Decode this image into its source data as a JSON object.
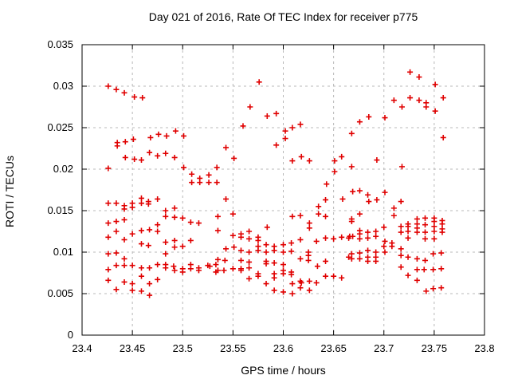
{
  "chart_data": {
    "type": "scatter",
    "title": "Day 021 of 2016, Rate Of TEC Index for receiver p775",
    "xlabel": "GPS time / hours",
    "ylabel": "ROTI / TECUs",
    "xlim": [
      23.4,
      23.8
    ],
    "ylim": [
      0,
      0.035
    ],
    "x_ticks": [
      23.4,
      23.45,
      23.5,
      23.55,
      23.6,
      23.65,
      23.7,
      23.75,
      23.8
    ],
    "x_tick_labels": [
      "23.4",
      "23.45",
      "23.5",
      "23.55",
      "23.6",
      "23.65",
      "23.7",
      "23.75",
      "23.8"
    ],
    "y_ticks": [
      0,
      0.005,
      0.01,
      0.015,
      0.02,
      0.025,
      0.03,
      0.035
    ],
    "y_tick_labels": [
      "0",
      "0.005",
      "0.01",
      "0.015",
      "0.02",
      "0.025",
      "0.03",
      "0.035"
    ],
    "grid": true,
    "legend_position": "none",
    "marker": "plus",
    "marker_color": "#e00000",
    "grid_color": "#b8b8b8",
    "border_color": "#000000",
    "points": [
      [
        23.426,
        0.03
      ],
      [
        23.434,
        0.0296
      ],
      [
        23.442,
        0.0292
      ],
      [
        23.452,
        0.0287
      ],
      [
        23.46,
        0.0286
      ],
      [
        23.435,
        0.0232
      ],
      [
        23.435,
        0.0228
      ],
      [
        23.443,
        0.0233
      ],
      [
        23.451,
        0.0236
      ],
      [
        23.443,
        0.0214
      ],
      [
        23.452,
        0.0212
      ],
      [
        23.459,
        0.0211
      ],
      [
        23.468,
        0.0238
      ],
      [
        23.476,
        0.0242
      ],
      [
        23.484,
        0.024
      ],
      [
        23.493,
        0.0246
      ],
      [
        23.501,
        0.024
      ],
      [
        23.467,
        0.022
      ],
      [
        23.475,
        0.0216
      ],
      [
        23.483,
        0.0219
      ],
      [
        23.492,
        0.0214
      ],
      [
        23.426,
        0.0201
      ],
      [
        23.501,
        0.0202
      ],
      [
        23.534,
        0.0202
      ],
      [
        23.509,
        0.0194
      ],
      [
        23.517,
        0.0189
      ],
      [
        23.526,
        0.0193
      ],
      [
        23.509,
        0.0184
      ],
      [
        23.517,
        0.0184
      ],
      [
        23.526,
        0.0184
      ],
      [
        23.534,
        0.0184
      ],
      [
        23.576,
        0.0305
      ],
      [
        23.567,
        0.0275
      ],
      [
        23.584,
        0.0264
      ],
      [
        23.593,
        0.0267
      ],
      [
        23.56,
        0.0252
      ],
      [
        23.602,
        0.0246
      ],
      [
        23.609,
        0.025
      ],
      [
        23.617,
        0.0254
      ],
      [
        23.602,
        0.0237
      ],
      [
        23.593,
        0.0229
      ],
      [
        23.543,
        0.0226
      ],
      [
        23.551,
        0.0213
      ],
      [
        23.609,
        0.021
      ],
      [
        23.618,
        0.0215
      ],
      [
        23.626,
        0.021
      ],
      [
        23.651,
        0.021
      ],
      [
        23.658,
        0.0215
      ],
      [
        23.668,
        0.0243
      ],
      [
        23.668,
        0.0203
      ],
      [
        23.651,
        0.0197
      ],
      [
        23.643,
        0.0182
      ],
      [
        23.726,
        0.0317
      ],
      [
        23.735,
        0.0311
      ],
      [
        23.751,
        0.0302
      ],
      [
        23.71,
        0.0283
      ],
      [
        23.726,
        0.0286
      ],
      [
        23.735,
        0.0283
      ],
      [
        23.742,
        0.028
      ],
      [
        23.742,
        0.0275
      ],
      [
        23.718,
        0.0275
      ],
      [
        23.751,
        0.027
      ],
      [
        23.759,
        0.0286
      ],
      [
        23.701,
        0.0262
      ],
      [
        23.685,
        0.0263
      ],
      [
        23.676,
        0.0257
      ],
      [
        23.759,
        0.0238
      ],
      [
        23.693,
        0.0211
      ],
      [
        23.718,
        0.0203
      ],
      [
        23.459,
        0.0165
      ],
      [
        23.475,
        0.0164
      ],
      [
        23.426,
        0.0159
      ],
      [
        23.434,
        0.0159
      ],
      [
        23.442,
        0.0156
      ],
      [
        23.45,
        0.0159
      ],
      [
        23.459,
        0.0159
      ],
      [
        23.466,
        0.0161
      ],
      [
        23.466,
        0.0158
      ],
      [
        23.442,
        0.0152
      ],
      [
        23.45,
        0.0154
      ],
      [
        23.483,
        0.015
      ],
      [
        23.492,
        0.0153
      ],
      [
        23.483,
        0.0143
      ],
      [
        23.492,
        0.0142
      ],
      [
        23.5,
        0.0141
      ],
      [
        23.508,
        0.0136
      ],
      [
        23.516,
        0.0135
      ],
      [
        23.535,
        0.0143
      ],
      [
        23.426,
        0.0135
      ],
      [
        23.434,
        0.0137
      ],
      [
        23.442,
        0.0139
      ],
      [
        23.434,
        0.0125
      ],
      [
        23.426,
        0.0118
      ],
      [
        23.442,
        0.0115
      ],
      [
        23.45,
        0.0122
      ],
      [
        23.459,
        0.0126
      ],
      [
        23.467,
        0.0127
      ],
      [
        23.475,
        0.0133
      ],
      [
        23.475,
        0.0125
      ],
      [
        23.459,
        0.011
      ],
      [
        23.466,
        0.0108
      ],
      [
        23.483,
        0.0112
      ],
      [
        23.492,
        0.0114
      ],
      [
        23.492,
        0.0106
      ],
      [
        23.5,
        0.0107
      ],
      [
        23.508,
        0.0114
      ],
      [
        23.483,
        0.0098
      ],
      [
        23.426,
        0.0098
      ],
      [
        23.434,
        0.0099
      ],
      [
        23.442,
        0.0092
      ],
      [
        23.434,
        0.0084
      ],
      [
        23.442,
        0.0084
      ],
      [
        23.45,
        0.0084
      ],
      [
        23.426,
        0.0079
      ],
      [
        23.459,
        0.0081
      ],
      [
        23.467,
        0.0081
      ],
      [
        23.475,
        0.0085
      ],
      [
        23.483,
        0.0085
      ],
      [
        23.483,
        0.0081
      ],
      [
        23.491,
        0.0083
      ],
      [
        23.492,
        0.0078
      ],
      [
        23.5,
        0.008
      ],
      [
        23.5,
        0.0076
      ],
      [
        23.508,
        0.0085
      ],
      [
        23.508,
        0.008
      ],
      [
        23.516,
        0.0081
      ],
      [
        23.516,
        0.0078
      ],
      [
        23.525,
        0.0084
      ],
      [
        23.527,
        0.0083
      ],
      [
        23.533,
        0.0085
      ],
      [
        23.533,
        0.0076
      ],
      [
        23.426,
        0.0066
      ],
      [
        23.442,
        0.0064
      ],
      [
        23.45,
        0.0062
      ],
      [
        23.459,
        0.0071
      ],
      [
        23.467,
        0.0062
      ],
      [
        23.475,
        0.0067
      ],
      [
        23.434,
        0.0055
      ],
      [
        23.45,
        0.0054
      ],
      [
        23.459,
        0.0053
      ],
      [
        23.467,
        0.0048
      ],
      [
        23.543,
        0.0164
      ],
      [
        23.642,
        0.0163
      ],
      [
        23.659,
        0.0164
      ],
      [
        23.635,
        0.0155
      ],
      [
        23.635,
        0.0146
      ],
      [
        23.55,
        0.0146
      ],
      [
        23.609,
        0.0143
      ],
      [
        23.617,
        0.0144
      ],
      [
        23.642,
        0.0143
      ],
      [
        23.668,
        0.0137
      ],
      [
        23.626,
        0.0135
      ],
      [
        23.584,
        0.013
      ],
      [
        23.626,
        0.0129
      ],
      [
        23.535,
        0.0126
      ],
      [
        23.55,
        0.012
      ],
      [
        23.558,
        0.0122
      ],
      [
        23.558,
        0.0118
      ],
      [
        23.566,
        0.0125
      ],
      [
        23.566,
        0.0116
      ],
      [
        23.575,
        0.0118
      ],
      [
        23.575,
        0.0114
      ],
      [
        23.617,
        0.0115
      ],
      [
        23.633,
        0.0113
      ],
      [
        23.642,
        0.0117
      ],
      [
        23.65,
        0.0116
      ],
      [
        23.658,
        0.0118
      ],
      [
        23.665,
        0.0117
      ],
      [
        23.669,
        0.0119
      ],
      [
        23.666,
        0.0119
      ],
      [
        23.575,
        0.0107
      ],
      [
        23.583,
        0.0109
      ],
      [
        23.591,
        0.0107
      ],
      [
        23.6,
        0.0109
      ],
      [
        23.608,
        0.0111
      ],
      [
        23.551,
        0.0106
      ],
      [
        23.543,
        0.0104
      ],
      [
        23.558,
        0.0102
      ],
      [
        23.566,
        0.01
      ],
      [
        23.575,
        0.0102
      ],
      [
        23.583,
        0.01
      ],
      [
        23.591,
        0.0102
      ],
      [
        23.6,
        0.01
      ],
      [
        23.608,
        0.0101
      ],
      [
        23.625,
        0.01
      ],
      [
        23.625,
        0.0096
      ],
      [
        23.617,
        0.0092
      ],
      [
        23.625,
        0.009
      ],
      [
        23.535,
        0.0091
      ],
      [
        23.542,
        0.009
      ],
      [
        23.558,
        0.009
      ],
      [
        23.566,
        0.0088
      ],
      [
        23.583,
        0.0089
      ],
      [
        23.583,
        0.0086
      ],
      [
        23.591,
        0.0087
      ],
      [
        23.6,
        0.0085
      ],
      [
        23.634,
        0.0083
      ],
      [
        23.642,
        0.0089
      ],
      [
        23.535,
        0.0078
      ],
      [
        23.541,
        0.0078
      ],
      [
        23.55,
        0.008
      ],
      [
        23.558,
        0.008
      ],
      [
        23.558,
        0.0078
      ],
      [
        23.566,
        0.0081
      ],
      [
        23.575,
        0.0074
      ],
      [
        23.575,
        0.0071
      ],
      [
        23.566,
        0.0068
      ],
      [
        23.591,
        0.0074
      ],
      [
        23.591,
        0.0069
      ],
      [
        23.6,
        0.0078
      ],
      [
        23.6,
        0.0074
      ],
      [
        23.608,
        0.0076
      ],
      [
        23.608,
        0.0073
      ],
      [
        23.583,
        0.0062
      ],
      [
        23.609,
        0.0062
      ],
      [
        23.617,
        0.0065
      ],
      [
        23.618,
        0.0063
      ],
      [
        23.626,
        0.0065
      ],
      [
        23.633,
        0.0063
      ],
      [
        23.642,
        0.0071
      ],
      [
        23.65,
        0.0071
      ],
      [
        23.658,
        0.0069
      ],
      [
        23.591,
        0.0054
      ],
      [
        23.6,
        0.0052
      ],
      [
        23.609,
        0.005
      ],
      [
        23.617,
        0.0057
      ],
      [
        23.626,
        0.0054
      ],
      [
        23.669,
        0.0173
      ],
      [
        23.676,
        0.0174
      ],
      [
        23.684,
        0.0169
      ],
      [
        23.685,
        0.0161
      ],
      [
        23.693,
        0.0163
      ],
      [
        23.701,
        0.0172
      ],
      [
        23.717,
        0.0161
      ],
      [
        23.71,
        0.0153
      ],
      [
        23.71,
        0.0144
      ],
      [
        23.676,
        0.0146
      ],
      [
        23.668,
        0.014
      ],
      [
        23.676,
        0.0126
      ],
      [
        23.676,
        0.0122
      ],
      [
        23.684,
        0.0124
      ],
      [
        23.692,
        0.0125
      ],
      [
        23.692,
        0.0119
      ],
      [
        23.684,
        0.0117
      ],
      [
        23.676,
        0.0116
      ],
      [
        23.7,
        0.013
      ],
      [
        23.701,
        0.0113
      ],
      [
        23.708,
        0.0111
      ],
      [
        23.7,
        0.0107
      ],
      [
        23.708,
        0.0107
      ],
      [
        23.684,
        0.0102
      ],
      [
        23.692,
        0.01
      ],
      [
        23.701,
        0.01
      ],
      [
        23.668,
        0.0098
      ],
      [
        23.676,
        0.0099
      ],
      [
        23.668,
        0.0092
      ],
      [
        23.676,
        0.0092
      ],
      [
        23.665,
        0.0094
      ],
      [
        23.684,
        0.0094
      ],
      [
        23.692,
        0.0094
      ],
      [
        23.684,
        0.0089
      ],
      [
        23.692,
        0.0089
      ],
      [
        23.717,
        0.0104
      ],
      [
        23.717,
        0.0096
      ],
      [
        23.724,
        0.0094
      ],
      [
        23.733,
        0.0092
      ],
      [
        23.741,
        0.009
      ],
      [
        23.717,
        0.0082
      ],
      [
        23.724,
        0.0072
      ],
      [
        23.733,
        0.0079
      ],
      [
        23.74,
        0.0079
      ],
      [
        23.733,
        0.0066
      ],
      [
        23.749,
        0.0098
      ],
      [
        23.757,
        0.0099
      ],
      [
        23.749,
        0.0079
      ],
      [
        23.757,
        0.008
      ],
      [
        23.757,
        0.0057
      ],
      [
        23.749,
        0.0056
      ],
      [
        23.742,
        0.0053
      ],
      [
        23.717,
        0.0131
      ],
      [
        23.717,
        0.0124
      ],
      [
        23.724,
        0.0134
      ],
      [
        23.724,
        0.0131
      ],
      [
        23.724,
        0.0125
      ],
      [
        23.724,
        0.0117
      ],
      [
        23.733,
        0.014
      ],
      [
        23.733,
        0.0134
      ],
      [
        23.733,
        0.0129
      ],
      [
        23.733,
        0.0124
      ],
      [
        23.741,
        0.0141
      ],
      [
        23.741,
        0.0133
      ],
      [
        23.741,
        0.0124
      ],
      [
        23.741,
        0.0116
      ],
      [
        23.75,
        0.0141
      ],
      [
        23.75,
        0.0137
      ],
      [
        23.75,
        0.0131
      ],
      [
        23.75,
        0.0125
      ],
      [
        23.75,
        0.0116
      ],
      [
        23.758,
        0.0138
      ],
      [
        23.758,
        0.0134
      ],
      [
        23.758,
        0.0128
      ],
      [
        23.758,
        0.0124
      ]
    ]
  }
}
